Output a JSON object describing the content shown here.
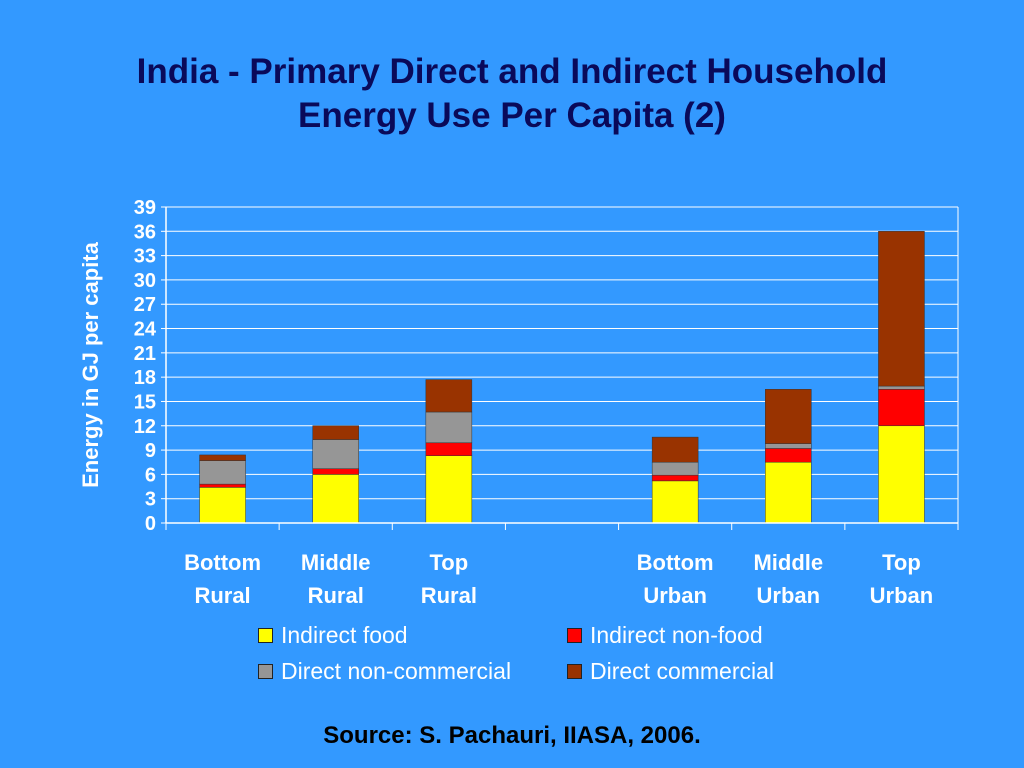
{
  "slide": {
    "title_line1": "India - Primary Direct and Indirect Household",
    "title_line2": "Energy Use Per Capita (2)",
    "source": "Source: S. Pachauri, IIASA, 2006."
  },
  "colors": {
    "background": "#3399ff",
    "title": "#0a0a5a",
    "gridline": "#ffffff",
    "indirect_food": "#ffff00",
    "indirect_nonfood": "#ff0000",
    "direct_noncommercial": "#969696",
    "direct_commercial": "#993300"
  },
  "chart_data": {
    "type": "bar",
    "stacked": true,
    "title": "",
    "ylabel": "Energy in GJ per capita",
    "xlabel": "",
    "ylim": [
      0,
      39
    ],
    "yticks": [
      0,
      3,
      6,
      9,
      12,
      15,
      18,
      21,
      24,
      27,
      30,
      33,
      36,
      39
    ],
    "grid": true,
    "legend_position": "bottom",
    "categories": [
      [
        "Bottom",
        "Rural"
      ],
      [
        "Middle",
        "Rural"
      ],
      [
        "Top",
        "Rural"
      ],
      [
        "",
        ""
      ],
      [
        "Bottom",
        "Urban"
      ],
      [
        "Middle",
        "Urban"
      ],
      [
        "Top",
        "Urban"
      ]
    ],
    "series": [
      {
        "name": "Indirect food",
        "color": "#ffff00",
        "values": [
          4.4,
          6.0,
          8.3,
          0,
          5.2,
          7.5,
          12.0
        ]
      },
      {
        "name": "Indirect non-food",
        "color": "#ff0000",
        "values": [
          0.4,
          0.7,
          1.6,
          0,
          0.7,
          1.7,
          4.5
        ]
      },
      {
        "name": "Direct non-commercial",
        "color": "#969696",
        "values": [
          2.9,
          3.6,
          3.8,
          0,
          1.6,
          0.6,
          0.4
        ]
      },
      {
        "name": "Direct commercial",
        "color": "#993300",
        "values": [
          0.7,
          1.7,
          4.0,
          0,
          3.1,
          6.7,
          19.1
        ]
      }
    ]
  }
}
